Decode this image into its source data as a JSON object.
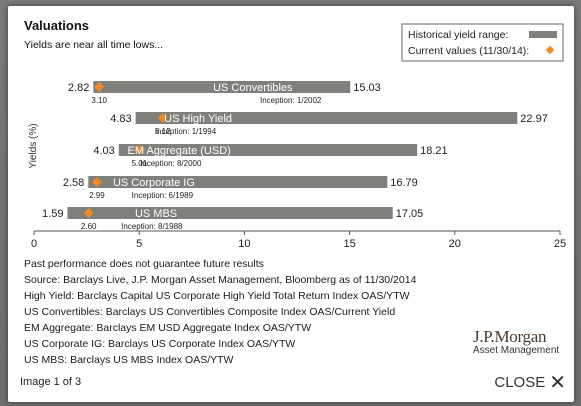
{
  "modal": {
    "pager": "Image 1 of 3",
    "close_label": "CLOSE"
  },
  "chart_data": {
    "type": "bar",
    "orientation": "horizontal",
    "title": "Valuations",
    "subtitle": "Yields are near all time lows...",
    "ylabel": "Yields (%)",
    "xlim": [
      0,
      25
    ],
    "xticks": [
      0,
      5,
      10,
      15,
      20,
      25
    ],
    "legend": {
      "position": "top-right",
      "range_label": "Historical yield range:",
      "current_label": "Current values (11/30/14):"
    },
    "colors": {
      "bar": "#7f7f7b",
      "marker": "#f08a24"
    },
    "series": [
      {
        "name": "US Convertibles",
        "min": 2.82,
        "max": 15.03,
        "current": 3.1,
        "min_label": "2.82",
        "max_label": "15.03",
        "current_label": "3.10",
        "inception": "Inception: 1/2002"
      },
      {
        "name": "US High Yield",
        "min": 4.83,
        "max": 22.97,
        "current": 6.12,
        "min_label": "4.83",
        "max_label": "22.97",
        "current_label": "6.12",
        "inception": "Inception: 1/1994"
      },
      {
        "name": "EM Aggregate (USD)",
        "min": 4.03,
        "max": 18.21,
        "current": 5.01,
        "min_label": "4.03",
        "max_label": "18.21",
        "current_label": "5.01",
        "inception": "Inception: 8/2000"
      },
      {
        "name": "US Corporate IG",
        "min": 2.58,
        "max": 16.79,
        "current": 2.99,
        "min_label": "2.58",
        "max_label": "16.79",
        "current_label": "2.99",
        "inception": "Inception: 6/1989"
      },
      {
        "name": "US MBS",
        "min": 1.59,
        "max": 17.05,
        "current": 2.6,
        "min_label": "1.59",
        "max_label": "17.05",
        "current_label": "2.60",
        "inception": "Inception: 8/1988"
      }
    ]
  },
  "notes": [
    "Past performance does not guarantee future results",
    "Source: Barclays Live, J.P. Morgan Asset Management, Bloomberg as of 11/30/2014",
    "High Yield: Barclays Capital US Corporate High Yield Total Return Index OAS/YTW",
    "US Convertibles: Barclays US Convertibles Composite Index OAS/Current Yield",
    "EM Aggregate: Barclays EM USD Aggregate Index OAS/YTW",
    "US Corporate IG: Barclays US Corporate Index OAS/YTW",
    "US MBS: Barclays US MBS Index OAS/YTW"
  ],
  "logo": {
    "name": "J.P.Morgan",
    "sub": "Asset Management"
  }
}
